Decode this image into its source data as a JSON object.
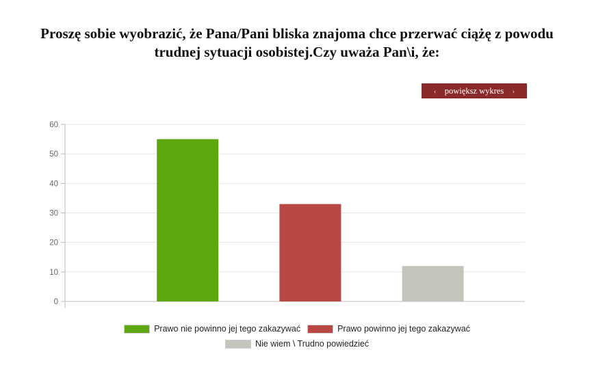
{
  "title": "Proszę sobie wyobrazić, że Pana/Pani bliska znajoma chce przerwać ciążę z powodu trudnej sytuacji osobistej.Czy uważa Pan\\i, że:",
  "zoom_button": {
    "label": "powiększ wykres",
    "prev_icon": "‹",
    "next_icon": "›"
  },
  "chart_data": {
    "type": "bar",
    "categories": [
      "Prawo nie powinno jej tego zakazywać",
      "Prawo powinno jej tego zakazywać",
      "Nie wiem \\ Trudno powiedzieć"
    ],
    "values": [
      55,
      33,
      12
    ],
    "colors": [
      "#5ea80f",
      "#b94744",
      "#c5c4bc"
    ],
    "ylim": [
      0,
      60
    ],
    "yticks": [
      0,
      10,
      20,
      30,
      40,
      50,
      60
    ],
    "grid": true,
    "legend_position": "bottom"
  }
}
